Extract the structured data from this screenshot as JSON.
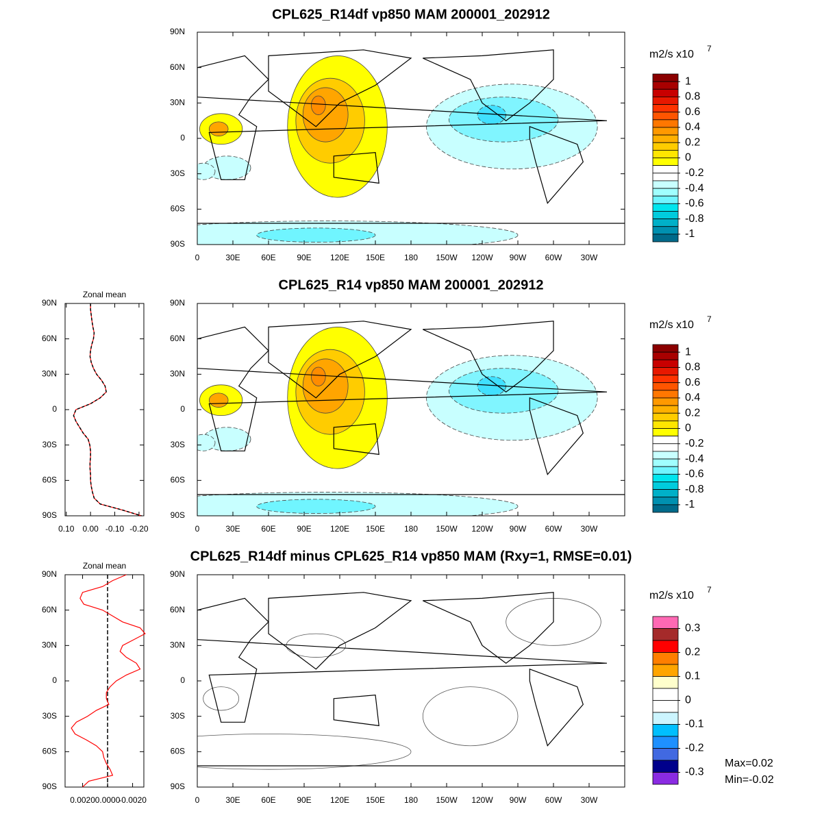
{
  "chart_data": [
    {
      "type": "map",
      "title": "CPL625_R14df vp850 MAM 200001_202912",
      "xlim": [
        0,
        360
      ],
      "xticks": [
        0,
        {
          "value": 30,
          "label": "30E"
        },
        {
          "value": 60,
          "label": "60E"
        },
        {
          "value": 90,
          "label": "90E"
        },
        {
          "value": 120,
          "label": "120E"
        },
        {
          "value": 150,
          "label": "150E"
        },
        180,
        {
          "value": 210,
          "label": "150W"
        },
        {
          "value": 240,
          "label": "120W"
        },
        {
          "value": 270,
          "label": "90W"
        },
        {
          "value": 300,
          "label": "60W"
        },
        {
          "value": 330,
          "label": "30W"
        }
      ],
      "ylim": [
        -90,
        90
      ],
      "yticks": [
        {
          "value": 90,
          "label": "90N"
        },
        {
          "value": 60,
          "label": "60N"
        },
        {
          "value": 30,
          "label": "30N"
        },
        0,
        {
          "value": -30,
          "label": "30S"
        },
        {
          "value": -60,
          "label": "60S"
        },
        {
          "value": -90,
          "label": "90S"
        }
      ],
      "colorbar": {
        "unit": "m2/s x10",
        "unit_exponent": "7",
        "lim": [
          -1.1,
          1.1
        ],
        "ticks": [
          1,
          0.8,
          0.6,
          0.4,
          0.2,
          0,
          -0.2,
          -0.4,
          -0.6,
          -0.8,
          -1
        ],
        "colors": [
          "#8b0000",
          "#a80000",
          "#c80000",
          "#e81800",
          "#ff3300",
          "#ff5500",
          "#ff7700",
          "#ff9900",
          "#ffb000",
          "#ffcc00",
          "#ffe600",
          "#ffff00",
          "#ffffff",
          "#ffffff",
          "#c8ffff",
          "#a0ffff",
          "#70f5ff",
          "#00e5ee",
          "#00ccdd",
          "#00b0c8",
          "#0090b0",
          "#006a8a"
        ]
      }
    },
    {
      "type": "line",
      "title": "Zonal mean",
      "y": [
        90,
        85,
        80,
        75,
        70,
        65,
        60,
        55,
        50,
        45,
        40,
        35,
        30,
        25,
        20,
        15,
        10,
        5,
        0,
        -5,
        -10,
        -15,
        -20,
        -25,
        -30,
        -35,
        -40,
        -45,
        -50,
        -55,
        -60,
        -65,
        -70,
        -75,
        -80,
        -85,
        -90
      ],
      "ylim": [
        -90,
        90
      ],
      "yticks": [
        {
          "value": 90,
          "label": "90N"
        },
        {
          "value": 60,
          "label": "60N"
        },
        {
          "value": 30,
          "label": "30N"
        },
        0,
        {
          "value": -30,
          "label": "30S"
        },
        {
          "value": -60,
          "label": "60S"
        },
        {
          "value": -90,
          "label": "90S"
        }
      ],
      "xlim": [
        0.105,
        -0.22
      ],
      "xticks": [
        {
          "value": 0.1,
          "label": "0.10"
        },
        {
          "value": 0,
          "label": "0.00"
        },
        {
          "value": -0.1,
          "label": "-0.10"
        },
        {
          "value": -0.2,
          "label": "-0.20"
        }
      ],
      "series": [
        {
          "color": "#ff0000",
          "dashed": false,
          "values": [
            0,
            0,
            -0.003,
            -0.006,
            -0.01,
            -0.015,
            -0.012,
            -0.005,
            0,
            0.002,
            -0.003,
            -0.012,
            -0.025,
            -0.045,
            -0.06,
            -0.065,
            -0.04,
            0,
            0.06,
            0.07,
            0.06,
            0.045,
            0.03,
            0.01,
            0.003,
            0,
            0,
            0.002,
            0.002,
            0,
            0,
            -0.003,
            -0.008,
            -0.015,
            -0.04,
            -0.13,
            -0.21
          ]
        },
        {
          "color": "#000000",
          "dashed": true,
          "values": [
            0,
            0,
            -0.003,
            -0.006,
            -0.01,
            -0.015,
            -0.012,
            -0.005,
            0,
            0.002,
            -0.003,
            -0.012,
            -0.025,
            -0.045,
            -0.06,
            -0.065,
            -0.04,
            0,
            0.06,
            0.07,
            0.06,
            0.045,
            0.03,
            0.01,
            0.003,
            0,
            0,
            0.002,
            0.002,
            0,
            0,
            -0.003,
            -0.008,
            -0.015,
            -0.04,
            -0.13,
            -0.21
          ]
        }
      ]
    },
    {
      "type": "map",
      "title": "CPL625_R14 vp850 MAM 200001_202912",
      "xlim": [
        0,
        360
      ],
      "xticks": [
        0,
        {
          "value": 30,
          "label": "30E"
        },
        {
          "value": 60,
          "label": "60E"
        },
        {
          "value": 90,
          "label": "90E"
        },
        {
          "value": 120,
          "label": "120E"
        },
        {
          "value": 150,
          "label": "150E"
        },
        180,
        {
          "value": 210,
          "label": "150W"
        },
        {
          "value": 240,
          "label": "120W"
        },
        {
          "value": 270,
          "label": "90W"
        },
        {
          "value": 300,
          "label": "60W"
        },
        {
          "value": 330,
          "label": "30W"
        }
      ],
      "ylim": [
        -90,
        90
      ],
      "yticks": [
        {
          "value": 90,
          "label": "90N"
        },
        {
          "value": 60,
          "label": "60N"
        },
        {
          "value": 30,
          "label": "30N"
        },
        0,
        {
          "value": -30,
          "label": "30S"
        },
        {
          "value": -60,
          "label": "60S"
        },
        {
          "value": -90,
          "label": "90S"
        }
      ],
      "colorbar": {
        "unit": "m2/s x10",
        "unit_exponent": "7",
        "lim": [
          -1.1,
          1.1
        ],
        "ticks": [
          1,
          0.8,
          0.6,
          0.4,
          0.2,
          0,
          -0.2,
          -0.4,
          -0.6,
          -0.8,
          -1
        ],
        "colors": [
          "#8b0000",
          "#a80000",
          "#c80000",
          "#e81800",
          "#ff3300",
          "#ff5500",
          "#ff7700",
          "#ff9900",
          "#ffb000",
          "#ffcc00",
          "#ffe600",
          "#ffff00",
          "#ffffff",
          "#ffffff",
          "#c8ffff",
          "#a0ffff",
          "#70f5ff",
          "#00e5ee",
          "#00ccdd",
          "#00b0c8",
          "#0090b0",
          "#006a8a"
        ]
      }
    },
    {
      "type": "line",
      "title": "Zonal mean",
      "y": [
        90,
        85,
        80,
        75,
        70,
        65,
        60,
        55,
        50,
        45,
        40,
        35,
        30,
        25,
        20,
        15,
        10,
        5,
        0,
        -5,
        -10,
        -15,
        -20,
        -25,
        -30,
        -35,
        -40,
        -45,
        -50,
        -55,
        -60,
        -65,
        -70,
        -75,
        -80,
        -85,
        -90
      ],
      "ylim": [
        -90,
        90
      ],
      "yticks": [
        {
          "value": 90,
          "label": "90N"
        },
        {
          "value": 60,
          "label": "60N"
        },
        {
          "value": 30,
          "label": "30N"
        },
        0,
        {
          "value": -30,
          "label": "30S"
        },
        {
          "value": -60,
          "label": "60S"
        },
        {
          "value": -90,
          "label": "90S"
        }
      ],
      "xlim": [
        0.0034,
        -0.0029
      ],
      "xticks": [
        {
          "value": 0.002,
          "label": "0.0020"
        },
        {
          "value": 0,
          "label": "0.0000"
        },
        {
          "value": -0.002,
          "label": "-0.0020"
        }
      ],
      "zero_line": true,
      "series": [
        {
          "color": "#ff0000",
          "dashed": false,
          "values": [
            -0.0015,
            -0.0004,
            0.0004,
            0.002,
            0.0022,
            0.0019,
            0.0004,
            -0.0004,
            -0.0012,
            -0.0026,
            -0.003,
            -0.0021,
            -0.0012,
            -0.001,
            -0.0015,
            -0.0023,
            -0.0026,
            -0.0015,
            -0.0007,
            -0.0002,
            0.0001,
            0.0001,
            -0.0001,
            0.0009,
            0.0016,
            0.0025,
            0.0029,
            0.0026,
            0.0017,
            0.0009,
            0.0004,
            0.0003,
            0.0001,
            -0.0002,
            -0.0004,
            0.0015,
            0.002
          ]
        }
      ]
    },
    {
      "type": "map",
      "title": "CPL625_R14df minus CPL625_R14 vp850 MAM (Rxy=1, RMSE=0.01)",
      "xlim": [
        0,
        360
      ],
      "xticks": [
        0,
        {
          "value": 30,
          "label": "30E"
        },
        {
          "value": 60,
          "label": "60E"
        },
        {
          "value": 90,
          "label": "90E"
        },
        {
          "value": 120,
          "label": "120E"
        },
        {
          "value": 150,
          "label": "150E"
        },
        180,
        {
          "value": 210,
          "label": "150W"
        },
        {
          "value": 240,
          "label": "120W"
        },
        {
          "value": 270,
          "label": "90W"
        },
        {
          "value": 300,
          "label": "60W"
        },
        {
          "value": 330,
          "label": "30W"
        }
      ],
      "ylim": [
        -90,
        90
      ],
      "yticks": [
        {
          "value": 90,
          "label": "90N"
        },
        {
          "value": 60,
          "label": "60N"
        },
        {
          "value": 30,
          "label": "30N"
        },
        0,
        {
          "value": -30,
          "label": "30S"
        },
        {
          "value": -60,
          "label": "60S"
        },
        {
          "value": -90,
          "label": "90S"
        }
      ],
      "colorbar": {
        "unit": "m2/s x10",
        "unit_exponent": "7",
        "lim": [
          -0.35,
          0.35
        ],
        "ticks": [
          0.3,
          0.2,
          0.1,
          0,
          -0.1,
          -0.2,
          -0.3
        ],
        "colors": [
          "#ff69b4",
          "#a52a2a",
          "#ff0000",
          "#ff7f00",
          "#ffa500",
          "#ffffcc",
          "#ffffff",
          "#ffffff",
          "#ccf5ff",
          "#00bfff",
          "#1e90ff",
          "#4169e1",
          "#00008b",
          "#8a2be2"
        ]
      },
      "annotations": [
        "Max=0.02",
        "Min=-0.02"
      ]
    }
  ]
}
